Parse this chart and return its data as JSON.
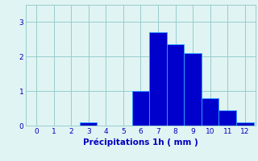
{
  "categories": [
    0,
    1,
    2,
    3,
    4,
    5,
    6,
    7,
    8,
    9,
    10,
    11,
    12
  ],
  "values": [
    0,
    0,
    0,
    0.1,
    0,
    0,
    1.0,
    2.7,
    2.35,
    2.1,
    0.8,
    0.45,
    0.1
  ],
  "bar_color": "#0000cc",
  "bar_edge_color": "#3399ff",
  "bg_color": "#e0f4f4",
  "grid_color": "#99cccc",
  "text_color": "#0000bb",
  "xlabel": "Précipitations 1h ( mm )",
  "ylim": [
    0,
    3.5
  ],
  "xlim": [
    -0.6,
    12.6
  ],
  "yticks": [
    0,
    1,
    2,
    3
  ],
  "xticks": [
    0,
    1,
    2,
    3,
    4,
    5,
    6,
    7,
    8,
    9,
    10,
    11,
    12
  ],
  "bar_width": 1.0
}
